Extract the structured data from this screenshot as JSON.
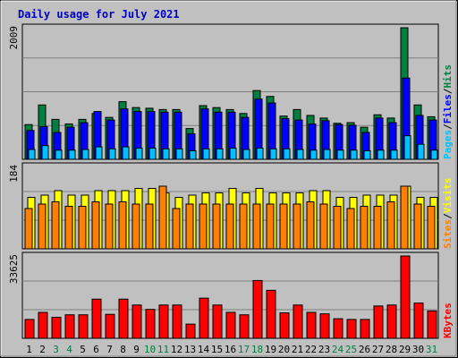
{
  "title": "Daily usage for July 2021",
  "colors": {
    "background": "#C0C0C0",
    "title": "#0000C0",
    "hits": "#008040",
    "files": "#0000FF",
    "pages": "#00C0FF",
    "visits": "#FFFF00",
    "sites": "#FF8000",
    "kbytes": "#FF0000",
    "weekend_label": "#008040",
    "weekday_label": "#000000"
  },
  "chart_data": [
    {
      "type": "bar",
      "name": "hits-files-pages",
      "categories": [
        "1",
        "2",
        "3",
        "4",
        "5",
        "6",
        "7",
        "8",
        "9",
        "10",
        "11",
        "12",
        "13",
        "14",
        "15",
        "16",
        "17",
        "18",
        "19",
        "20",
        "21",
        "22",
        "23",
        "24",
        "25",
        "26",
        "27",
        "28",
        "29",
        "30",
        "31"
      ],
      "ymax_label": "2009",
      "ylim": [
        0,
        2009
      ],
      "legend": [
        "Pages",
        "/",
        "Files",
        "/",
        "Hits"
      ],
      "series": [
        {
          "name": "Hits",
          "values": [
            530,
            830,
            610,
            540,
            610,
            700,
            640,
            880,
            790,
            780,
            760,
            760,
            470,
            820,
            790,
            760,
            700,
            1050,
            960,
            660,
            760,
            670,
            630,
            550,
            560,
            490,
            680,
            630,
            2009,
            830,
            650
          ]
        },
        {
          "name": "Files",
          "values": [
            440,
            500,
            410,
            490,
            560,
            730,
            600,
            770,
            730,
            730,
            720,
            720,
            390,
            770,
            720,
            720,
            640,
            920,
            860,
            620,
            600,
            540,
            590,
            530,
            520,
            410,
            630,
            560,
            1240,
            670,
            600
          ]
        },
        {
          "name": "Pages",
          "values": [
            150,
            210,
            140,
            140,
            150,
            190,
            160,
            190,
            170,
            170,
            160,
            160,
            130,
            160,
            160,
            170,
            150,
            170,
            160,
            160,
            150,
            140,
            150,
            140,
            140,
            130,
            140,
            140,
            360,
            230,
            140
          ]
        }
      ]
    },
    {
      "type": "bar",
      "name": "visits-sites",
      "categories": [
        "1",
        "2",
        "3",
        "4",
        "5",
        "6",
        "7",
        "8",
        "9",
        "10",
        "11",
        "12",
        "13",
        "14",
        "15",
        "16",
        "17",
        "18",
        "19",
        "20",
        "21",
        "22",
        "23",
        "24",
        "25",
        "26",
        "27",
        "28",
        "29",
        "30",
        "31"
      ],
      "ymax_label": "184",
      "ylim": [
        0,
        184
      ],
      "legend": [
        "Sites",
        "/",
        "Visits"
      ],
      "series": [
        {
          "name": "Visits",
          "values": [
            115,
            120,
            130,
            120,
            120,
            130,
            130,
            130,
            135,
            135,
            125,
            115,
            120,
            125,
            125,
            135,
            125,
            135,
            125,
            125,
            125,
            130,
            130,
            115,
            115,
            120,
            120,
            120,
            140,
            115,
            115
          ]
        },
        {
          "name": "Sites",
          "values": [
            90,
            100,
            105,
            95,
            95,
            105,
            100,
            105,
            100,
            100,
            140,
            90,
            100,
            100,
            100,
            100,
            100,
            100,
            100,
            100,
            100,
            105,
            100,
            95,
            90,
            95,
            95,
            105,
            140,
            100,
            95
          ]
        }
      ]
    },
    {
      "type": "bar",
      "name": "kbytes",
      "categories": [
        "1",
        "2",
        "3",
        "4",
        "5",
        "6",
        "7",
        "8",
        "9",
        "10",
        "11",
        "12",
        "13",
        "14",
        "15",
        "16",
        "17",
        "18",
        "19",
        "20",
        "21",
        "22",
        "23",
        "24",
        "25",
        "26",
        "27",
        "28",
        "29",
        "30",
        "31"
      ],
      "ymax_label": "33625",
      "ylim": [
        0,
        33625
      ],
      "legend": [
        "KBytes"
      ],
      "series": [
        {
          "name": "KBytes",
          "values": [
            7700,
            10600,
            8600,
            9600,
            9600,
            16000,
            9800,
            16000,
            13600,
            11800,
            13600,
            13600,
            5800,
            16400,
            13600,
            10600,
            9600,
            23600,
            19600,
            10400,
            13600,
            10600,
            10000,
            8000,
            7700,
            7700,
            13200,
            13600,
            33625,
            14400,
            11200
          ]
        }
      ]
    }
  ],
  "x_labels": [
    "1",
    "2",
    "3",
    "4",
    "5",
    "6",
    "7",
    "8",
    "9",
    "10",
    "11",
    "12",
    "13",
    "14",
    "15",
    "16",
    "17",
    "18",
    "19",
    "20",
    "21",
    "22",
    "23",
    "24",
    "25",
    "26",
    "27",
    "28",
    "29",
    "30",
    "31"
  ],
  "weekend_days": [
    3,
    4,
    10,
    11,
    17,
    18,
    24,
    25,
    31
  ]
}
